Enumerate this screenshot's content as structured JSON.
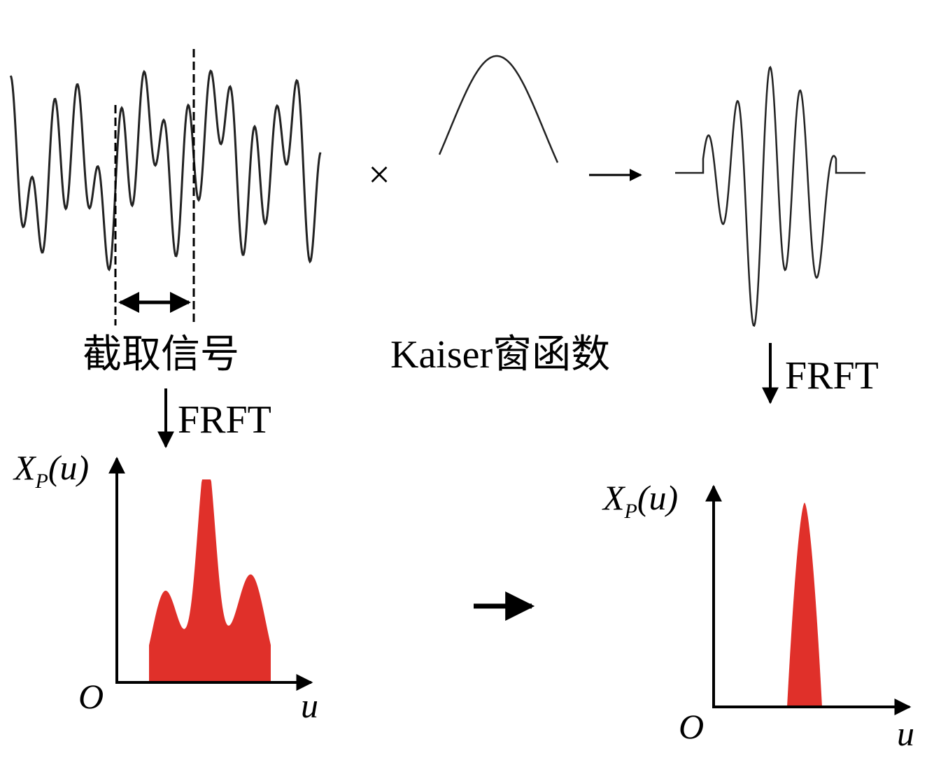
{
  "labels": {
    "truncate": "截取信号",
    "window": "Kaiser窗函数",
    "frft_left": "FRFT",
    "frft_right": "FRFT",
    "times": "×"
  },
  "left_plot": {
    "y_label": "X",
    "y_sub": "P",
    "y_arg": "(u)",
    "origin": "O",
    "x_label": "u"
  },
  "right_plot": {
    "y_label": "X",
    "y_sub": "P",
    "y_arg": "(u)",
    "origin": "O",
    "x_label": "u"
  }
}
